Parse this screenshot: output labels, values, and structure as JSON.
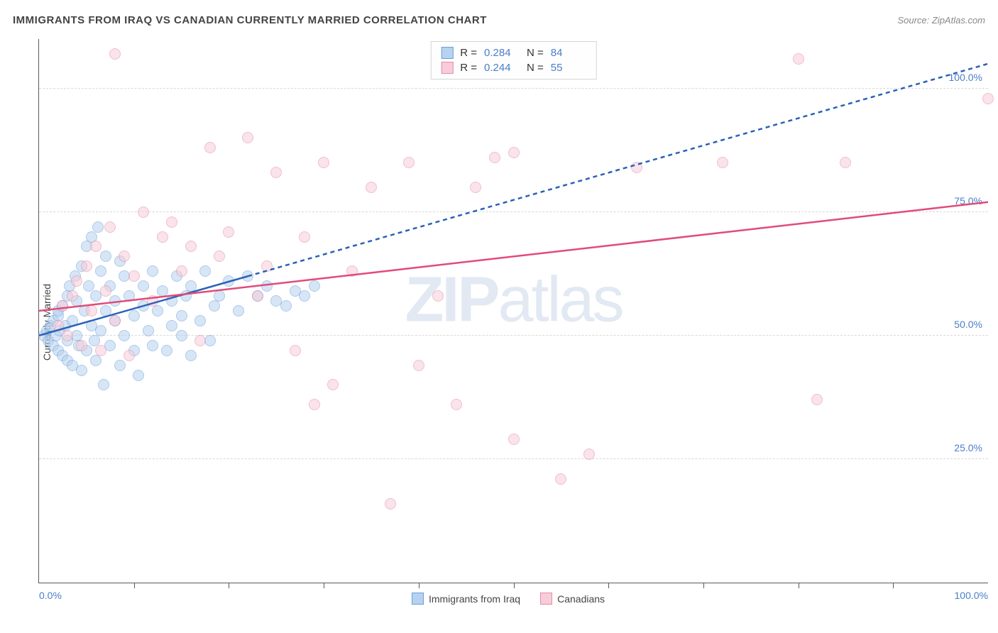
{
  "title": "IMMIGRANTS FROM IRAQ VS CANADIAN CURRENTLY MARRIED CORRELATION CHART",
  "source": "Source: ZipAtlas.com",
  "ylabel": "Currently Married",
  "watermark_a": "ZIP",
  "watermark_b": "atlas",
  "chart": {
    "type": "scatter",
    "xlim": [
      0,
      100
    ],
    "ylim": [
      0,
      110
    ],
    "yticks": [
      25,
      50,
      75,
      100
    ],
    "ytick_labels": [
      "25.0%",
      "50.0%",
      "75.0%",
      "100.0%"
    ],
    "xticks_minor": [
      10,
      20,
      30,
      40,
      50,
      60,
      70,
      80,
      90
    ],
    "xtick_labels": {
      "0": "0.0%",
      "100": "100.0%"
    },
    "grid_color": "#d8d8d8",
    "axis_color": "#5a5a5a",
    "background_color": "#ffffff",
    "marker_size": 16,
    "marker_opacity": 0.55,
    "series": [
      {
        "name": "Immigrants from Iraq",
        "color_fill": "#b7d2f0",
        "color_stroke": "#6a9fd8",
        "R": "0.284",
        "N": "84",
        "trend": {
          "x1": 0,
          "y1": 50,
          "x2_solid": 22,
          "y2_solid": 62,
          "x2": 100,
          "y2": 105,
          "color": "#2a62b8",
          "width": 2.5,
          "dash": "6,5"
        },
        "points": [
          [
            0.5,
            50
          ],
          [
            0.8,
            51
          ],
          [
            1,
            49
          ],
          [
            1.2,
            52
          ],
          [
            1.5,
            48
          ],
          [
            1.5,
            53
          ],
          [
            1.8,
            50
          ],
          [
            2,
            54
          ],
          [
            2,
            47
          ],
          [
            2,
            55
          ],
          [
            2.2,
            51
          ],
          [
            2.5,
            56
          ],
          [
            2.5,
            46
          ],
          [
            2.8,
            52
          ],
          [
            3,
            58
          ],
          [
            3,
            49
          ],
          [
            3,
            45
          ],
          [
            3.2,
            60
          ],
          [
            3.5,
            53
          ],
          [
            3.5,
            44
          ],
          [
            3.8,
            62
          ],
          [
            4,
            50
          ],
          [
            4,
            57
          ],
          [
            4.2,
            48
          ],
          [
            4.5,
            64
          ],
          [
            4.5,
            43
          ],
          [
            4.8,
            55
          ],
          [
            5,
            68
          ],
          [
            5,
            47
          ],
          [
            5.2,
            60
          ],
          [
            5.5,
            52
          ],
          [
            5.5,
            70
          ],
          [
            5.8,
            49
          ],
          [
            6,
            58
          ],
          [
            6,
            45
          ],
          [
            6.2,
            72
          ],
          [
            6.5,
            51
          ],
          [
            6.5,
            63
          ],
          [
            6.8,
            40
          ],
          [
            7,
            55
          ],
          [
            7,
            66
          ],
          [
            7.5,
            48
          ],
          [
            7.5,
            60
          ],
          [
            8,
            53
          ],
          [
            8,
            57
          ],
          [
            8.5,
            65
          ],
          [
            8.5,
            44
          ],
          [
            9,
            50
          ],
          [
            9,
            62
          ],
          [
            9.5,
            58
          ],
          [
            10,
            47
          ],
          [
            10,
            54
          ],
          [
            10.5,
            42
          ],
          [
            11,
            56
          ],
          [
            11,
            60
          ],
          [
            11.5,
            51
          ],
          [
            12,
            48
          ],
          [
            12,
            63
          ],
          [
            12.5,
            55
          ],
          [
            13,
            59
          ],
          [
            13.5,
            47
          ],
          [
            14,
            52
          ],
          [
            14,
            57
          ],
          [
            14.5,
            62
          ],
          [
            15,
            50
          ],
          [
            15,
            54
          ],
          [
            15.5,
            58
          ],
          [
            16,
            46
          ],
          [
            16,
            60
          ],
          [
            17,
            53
          ],
          [
            17.5,
            63
          ],
          [
            18,
            49
          ],
          [
            18.5,
            56
          ],
          [
            19,
            58
          ],
          [
            20,
            61
          ],
          [
            21,
            55
          ],
          [
            22,
            62
          ],
          [
            23,
            58
          ],
          [
            24,
            60
          ],
          [
            25,
            57
          ],
          [
            26,
            56
          ],
          [
            27,
            59
          ],
          [
            28,
            58
          ],
          [
            29,
            60
          ]
        ]
      },
      {
        "name": "Canadians",
        "color_fill": "#f7cdd9",
        "color_stroke": "#e58aa5",
        "R": "0.244",
        "N": "55",
        "trend": {
          "x1": 0,
          "y1": 55,
          "x2_solid": 100,
          "y2_solid": 77,
          "x2": 100,
          "y2": 77,
          "color": "#e14b78",
          "width": 2.5,
          "dash": ""
        },
        "points": [
          [
            2,
            52
          ],
          [
            2.5,
            56
          ],
          [
            3,
            50
          ],
          [
            3.5,
            58
          ],
          [
            4,
            61
          ],
          [
            4.5,
            48
          ],
          [
            5,
            64
          ],
          [
            5.5,
            55
          ],
          [
            6,
            68
          ],
          [
            6.5,
            47
          ],
          [
            7,
            59
          ],
          [
            7.5,
            72
          ],
          [
            8,
            53
          ],
          [
            8,
            107
          ],
          [
            9,
            66
          ],
          [
            9.5,
            46
          ],
          [
            10,
            62
          ],
          [
            11,
            75
          ],
          [
            12,
            57
          ],
          [
            13,
            70
          ],
          [
            14,
            73
          ],
          [
            15,
            63
          ],
          [
            16,
            68
          ],
          [
            17,
            49
          ],
          [
            18,
            88
          ],
          [
            19,
            66
          ],
          [
            20,
            71
          ],
          [
            22,
            90
          ],
          [
            23,
            58
          ],
          [
            24,
            64
          ],
          [
            25,
            83
          ],
          [
            27,
            47
          ],
          [
            28,
            70
          ],
          [
            29,
            36
          ],
          [
            30,
            85
          ],
          [
            31,
            40
          ],
          [
            33,
            63
          ],
          [
            35,
            80
          ],
          [
            37,
            16
          ],
          [
            39,
            85
          ],
          [
            40,
            44
          ],
          [
            42,
            58
          ],
          [
            44,
            36
          ],
          [
            46,
            80
          ],
          [
            48,
            86
          ],
          [
            50,
            29
          ],
          [
            50,
            87
          ],
          [
            55,
            21
          ],
          [
            58,
            26
          ],
          [
            63,
            84
          ],
          [
            72,
            85
          ],
          [
            80,
            106
          ],
          [
            82,
            37
          ],
          [
            85,
            85
          ],
          [
            100,
            98
          ]
        ]
      }
    ]
  },
  "legend_bottom": [
    {
      "label": "Immigrants from Iraq",
      "fill": "#b7d2f0",
      "stroke": "#6a9fd8"
    },
    {
      "label": "Canadians",
      "fill": "#f7cdd9",
      "stroke": "#e58aa5"
    }
  ],
  "corr_legend_labels": {
    "R": "R =",
    "N": "N ="
  }
}
